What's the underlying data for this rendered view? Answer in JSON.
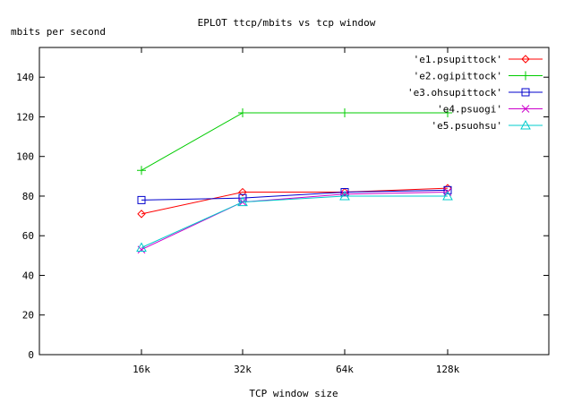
{
  "chart_data": {
    "type": "line",
    "title": "EPLOT ttcp/mbits vs tcp window",
    "xlabel": "TCP window size",
    "ylabel": "mbits per second",
    "categories": [
      "16k",
      "32k",
      "64k",
      "128k"
    ],
    "ylim": [
      0,
      155
    ],
    "yticks": [
      0,
      20,
      40,
      60,
      80,
      100,
      120,
      140
    ],
    "grid": false,
    "legend": "top-right",
    "series": [
      {
        "name": "'e1.psupittock'",
        "color": "#ff0000",
        "marker": "diamond",
        "values": [
          71,
          82,
          82,
          84
        ]
      },
      {
        "name": "'e2.ogipittock'",
        "color": "#00cc00",
        "marker": "plus",
        "values": [
          93,
          122,
          122,
          122
        ]
      },
      {
        "name": "'e3.ohsupittock'",
        "color": "#0000cc",
        "marker": "square",
        "values": [
          78,
          79,
          82,
          83
        ]
      },
      {
        "name": "'e4.psuogi'",
        "color": "#cc00cc",
        "marker": "cross",
        "values": [
          53,
          77,
          81,
          82
        ]
      },
      {
        "name": "'e5.psuohsu'",
        "color": "#00cccc",
        "marker": "triangle",
        "values": [
          54,
          77,
          80,
          80
        ]
      }
    ]
  }
}
